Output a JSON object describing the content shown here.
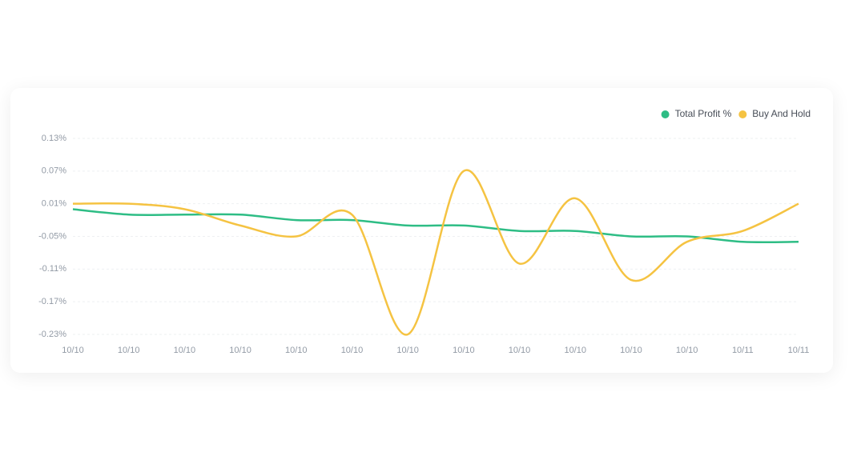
{
  "chart_data": {
    "type": "line",
    "categories": [
      "10/10",
      "10/10",
      "10/10",
      "10/10",
      "10/10",
      "10/10",
      "10/10",
      "10/10",
      "10/10",
      "10/10",
      "10/10",
      "10/10",
      "10/11",
      "10/11"
    ],
    "series": [
      {
        "name": "Total Profit %",
        "color": "#2ebd85",
        "values": [
          0.0,
          -0.01,
          -0.01,
          -0.01,
          -0.02,
          -0.02,
          -0.03,
          -0.03,
          -0.04,
          -0.04,
          -0.05,
          -0.05,
          -0.06,
          -0.06
        ]
      },
      {
        "name": "Buy And Hold",
        "color": "#f5c342",
        "values": [
          0.01,
          0.01,
          0.0,
          -0.03,
          -0.05,
          -0.01,
          -0.23,
          0.07,
          -0.1,
          0.02,
          -0.13,
          -0.06,
          -0.04,
          0.01
        ]
      }
    ],
    "ylim": [
      -0.23,
      0.13
    ],
    "yticks": [
      {
        "value": 0.13,
        "label": "0.13%"
      },
      {
        "value": 0.07,
        "label": "0.07%"
      },
      {
        "value": 0.01,
        "label": "0.01%"
      },
      {
        "value": -0.05,
        "label": "-0.05%"
      },
      {
        "value": -0.11,
        "label": "-0.11%"
      },
      {
        "value": -0.17,
        "label": "-0.17%"
      },
      {
        "value": -0.23,
        "label": "-0.23%"
      }
    ],
    "grid": true,
    "legend": "top-right"
  }
}
